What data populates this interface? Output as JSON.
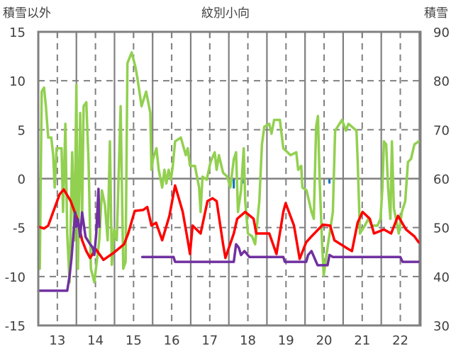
{
  "chart_data": {
    "type": "line",
    "title": "紋別小向",
    "ylabel_left": "積雪以外",
    "ylabel_right": "積雪",
    "xlim": [
      12.5,
      22.53
    ],
    "ylim_left": [
      -15,
      15
    ],
    "ylim_right": [
      30,
      90
    ],
    "x_ticks": [
      "13",
      "14",
      "15",
      "16",
      "17",
      "18",
      "19",
      "20",
      "21",
      "22"
    ],
    "y_ticks_left": [
      "15",
      "10",
      "5",
      "0",
      "-5",
      "-10",
      "-15"
    ],
    "y_ticks_right": [
      "90",
      "80",
      "70",
      "60",
      "50",
      "40",
      "30"
    ],
    "grid": true,
    "series": [
      {
        "name": "green",
        "axis": "left",
        "color": "#92d050",
        "points": [
          [
            12.5,
            -8.1
          ],
          [
            12.54,
            -9.2
          ],
          [
            12.59,
            8.9
          ],
          [
            12.65,
            9.3
          ],
          [
            12.7,
            7.4
          ],
          [
            12.76,
            4.2
          ],
          [
            12.84,
            4.2
          ],
          [
            12.89,
            2.4
          ],
          [
            12.93,
            -0.9
          ],
          [
            12.98,
            3.1
          ],
          [
            13.11,
            3.1
          ],
          [
            13.15,
            -3.4
          ],
          [
            13.21,
            5.6
          ],
          [
            13.26,
            -5.6
          ],
          [
            13.32,
            -10.6
          ],
          [
            13.39,
            2.7
          ],
          [
            13.45,
            -6.3
          ],
          [
            13.5,
            9.6
          ],
          [
            13.54,
            -9.2
          ],
          [
            13.6,
            6.7
          ],
          [
            13.65,
            -4.1
          ],
          [
            13.69,
            7.4
          ],
          [
            13.76,
            7.8
          ],
          [
            13.82,
            1.7
          ],
          [
            13.88,
            -9.2
          ],
          [
            13.97,
            -10.6
          ],
          [
            14.1,
            -6.3
          ],
          [
            14.17,
            -1.2
          ],
          [
            14.25,
            -2.7
          ],
          [
            14.32,
            -6.3
          ],
          [
            14.38,
            3.8
          ],
          [
            14.43,
            -8.8
          ],
          [
            14.49,
            -5.2
          ],
          [
            14.56,
            -6.3
          ],
          [
            14.66,
            7.4
          ],
          [
            14.73,
            -9.2
          ],
          [
            14.79,
            -8.5
          ],
          [
            14.84,
            11.8
          ],
          [
            14.95,
            12.9
          ],
          [
            15.05,
            11.4
          ],
          [
            15.1,
            10.3
          ],
          [
            15.21,
            7.4
          ],
          [
            15.33,
            8.9
          ],
          [
            15.44,
            6.7
          ],
          [
            15.47,
            0.9
          ],
          [
            15.51,
            2.0
          ],
          [
            15.6,
            3.1
          ],
          [
            15.66,
            0.9
          ],
          [
            15.75,
            -0.9
          ],
          [
            15.81,
            0.9
          ],
          [
            15.86,
            -0.5
          ],
          [
            15.92,
            0.9
          ],
          [
            15.98,
            -0.1
          ],
          [
            16.03,
            1.3
          ],
          [
            16.09,
            3.8
          ],
          [
            16.24,
            4.2
          ],
          [
            16.37,
            2.4
          ],
          [
            16.42,
            3.1
          ],
          [
            16.48,
            1.3
          ],
          [
            16.61,
            1.3
          ],
          [
            16.72,
            -0.9
          ],
          [
            16.76,
            -3.4
          ],
          [
            16.81,
            0.2
          ],
          [
            16.92,
            -0.1
          ],
          [
            17.02,
            1.7
          ],
          [
            17.13,
            2.7
          ],
          [
            17.18,
            0.9
          ],
          [
            17.24,
            2.4
          ],
          [
            17.35,
            0.6
          ],
          [
            17.46,
            0.2
          ],
          [
            17.54,
            -0.9
          ],
          [
            17.63,
            2.0
          ],
          [
            17.69,
            2.7
          ],
          [
            17.74,
            -3.4
          ],
          [
            17.82,
            -1.2
          ],
          [
            17.89,
            3.1
          ],
          [
            17.93,
            -2.3
          ],
          [
            18.0,
            -5.6
          ],
          [
            18.11,
            -5.9
          ],
          [
            18.19,
            -6.7
          ],
          [
            18.3,
            -2.3
          ],
          [
            18.37,
            3.5
          ],
          [
            18.43,
            5.3
          ],
          [
            18.56,
            5.6
          ],
          [
            18.62,
            4.6
          ],
          [
            18.69,
            6.0
          ],
          [
            18.84,
            6.0
          ],
          [
            18.93,
            3.1
          ],
          [
            19.12,
            2.4
          ],
          [
            19.27,
            2.7
          ],
          [
            19.32,
            0.9
          ],
          [
            19.4,
            1.3
          ],
          [
            19.43,
            -0.9
          ],
          [
            19.54,
            -1.2
          ],
          [
            19.67,
            -3.4
          ],
          [
            19.73,
            -4.1
          ],
          [
            19.79,
            5.3
          ],
          [
            19.84,
            6.4
          ],
          [
            19.88,
            0.2
          ],
          [
            19.95,
            -7.0
          ],
          [
            19.99,
            -9.9
          ],
          [
            20.05,
            -8.1
          ],
          [
            20.23,
            -3.4
          ],
          [
            20.29,
            4.9
          ],
          [
            20.47,
            6.0
          ],
          [
            20.57,
            4.9
          ],
          [
            20.64,
            5.6
          ],
          [
            20.85,
            4.9
          ],
          [
            20.88,
            2.0
          ],
          [
            20.94,
            -5.6
          ],
          [
            21.07,
            -4.8
          ],
          [
            21.16,
            -4.1
          ],
          [
            21.25,
            -4.8
          ],
          [
            21.4,
            -4.8
          ],
          [
            21.48,
            -4.1
          ],
          [
            21.53,
            -0.9
          ],
          [
            21.57,
            3.8
          ],
          [
            21.63,
            3.5
          ],
          [
            21.68,
            -0.9
          ],
          [
            21.74,
            -4.1
          ],
          [
            21.78,
            3.8
          ],
          [
            21.83,
            -3.0
          ],
          [
            21.96,
            -5.6
          ],
          [
            22.04,
            -3.4
          ],
          [
            22.13,
            -2.3
          ],
          [
            22.2,
            1.7
          ],
          [
            22.28,
            2.0
          ],
          [
            22.37,
            3.5
          ],
          [
            22.48,
            3.8
          ]
        ]
      },
      {
        "name": "red",
        "axis": "left",
        "color": "#ff0000",
        "points": [
          [
            12.5,
            -4.9
          ],
          [
            12.65,
            -5.1
          ],
          [
            12.76,
            -4.8
          ],
          [
            12.89,
            -3.4
          ],
          [
            13.06,
            -1.6
          ],
          [
            13.17,
            -1.1
          ],
          [
            13.35,
            -2.3
          ],
          [
            13.54,
            -4.3
          ],
          [
            13.65,
            -6.3
          ],
          [
            13.76,
            -7.4
          ],
          [
            13.86,
            -8.1
          ],
          [
            14.01,
            -7.2
          ],
          [
            14.21,
            -8.3
          ],
          [
            14.47,
            -7.6
          ],
          [
            14.75,
            -6.7
          ],
          [
            14.86,
            -5.6
          ],
          [
            15.03,
            -3.3
          ],
          [
            15.25,
            -3.2
          ],
          [
            15.36,
            -2.9
          ],
          [
            15.47,
            -4.8
          ],
          [
            15.59,
            -4.5
          ],
          [
            15.75,
            -6.3
          ],
          [
            15.94,
            -3.8
          ],
          [
            16.09,
            -0.7
          ],
          [
            16.29,
            -3.4
          ],
          [
            16.44,
            -6.7
          ],
          [
            16.48,
            -7.7
          ],
          [
            16.55,
            -4.8
          ],
          [
            16.76,
            -5.6
          ],
          [
            16.94,
            -2.3
          ],
          [
            17.07,
            -2.0
          ],
          [
            17.18,
            -2.3
          ],
          [
            17.35,
            -6.7
          ],
          [
            17.41,
            -8.1
          ],
          [
            17.63,
            -5.6
          ],
          [
            17.72,
            -4.1
          ],
          [
            17.93,
            -3.4
          ],
          [
            18.15,
            -4.1
          ],
          [
            18.22,
            -5.6
          ],
          [
            18.56,
            -5.6
          ],
          [
            18.75,
            -7.7
          ],
          [
            18.93,
            -3.4
          ],
          [
            18.99,
            -2.5
          ],
          [
            19.21,
            -4.8
          ],
          [
            19.36,
            -8.2
          ],
          [
            19.53,
            -6.5
          ],
          [
            19.67,
            -5.9
          ],
          [
            19.97,
            -4.7
          ],
          [
            20.16,
            -4.8
          ],
          [
            20.27,
            -6.3
          ],
          [
            20.64,
            -7.2
          ],
          [
            20.73,
            -7.4
          ],
          [
            20.88,
            -4.5
          ],
          [
            21.01,
            -3.4
          ],
          [
            21.2,
            -4.1
          ],
          [
            21.31,
            -5.6
          ],
          [
            21.57,
            -5.2
          ],
          [
            21.76,
            -5.6
          ],
          [
            21.94,
            -3.8
          ],
          [
            22.15,
            -5.2
          ],
          [
            22.37,
            -5.9
          ],
          [
            22.48,
            -6.5
          ]
        ]
      },
      {
        "name": "purple",
        "axis": "right",
        "color": "#7030a0",
        "points": [
          [
            12.5,
            37.1
          ],
          [
            13.26,
            37.1
          ],
          [
            13.32,
            40.1
          ],
          [
            13.37,
            43.7
          ],
          [
            13.47,
            53.1
          ],
          [
            13.5,
            50.2
          ],
          [
            13.54,
            51.7
          ],
          [
            13.6,
            48.1
          ],
          [
            13.65,
            53.1
          ],
          [
            13.74,
            48.1
          ],
          [
            13.86,
            46.6
          ],
          [
            13.93,
            45.9
          ],
          [
            13.97,
            44.4
          ],
          [
            14.02,
            48.8
          ],
          [
            14.08,
            57.9
          ],
          [
            14.1,
            50.2
          ],
          null,
          [
            15.23,
            44.0
          ],
          [
            16.05,
            44.0
          ],
          [
            16.09,
            43.0
          ],
          [
            17.63,
            43.0
          ],
          [
            17.69,
            46.6
          ],
          [
            17.76,
            45.9
          ],
          [
            17.82,
            44.4
          ],
          [
            17.91,
            45.2
          ],
          [
            18.04,
            44.0
          ],
          [
            18.93,
            44.0
          ],
          [
            18.97,
            43.0
          ],
          [
            19.53,
            43.0
          ],
          [
            19.58,
            44.4
          ],
          [
            19.67,
            45.2
          ],
          [
            19.83,
            42.3
          ],
          [
            20.09,
            42.3
          ],
          [
            20.14,
            44.4
          ],
          [
            20.23,
            44.0
          ],
          [
            22.0,
            44.0
          ],
          [
            22.06,
            43.0
          ],
          [
            22.48,
            43.0
          ]
        ]
      }
    ],
    "blue_marks": {
      "axis": "left",
      "color": "#0070c0",
      "points": [
        [
          13.37,
          -0.5
        ],
        [
          17.63,
          -1.0
        ],
        [
          17.89,
          -0.5
        ],
        [
          20.14,
          -0.5
        ]
      ]
    }
  }
}
